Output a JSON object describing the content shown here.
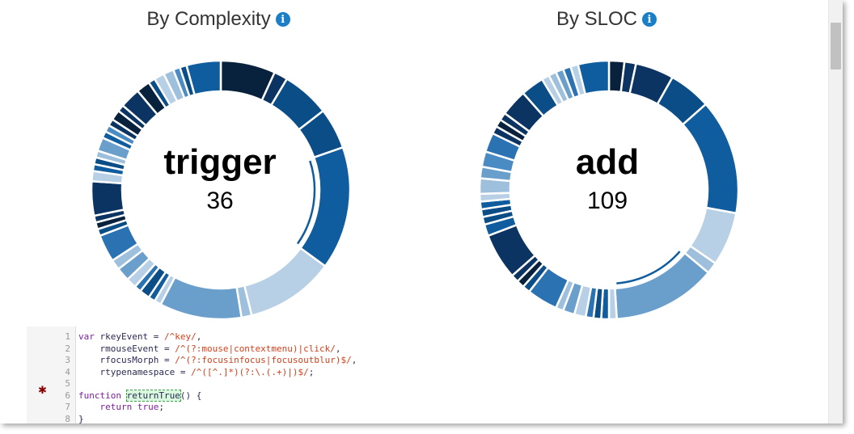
{
  "charts": {
    "complexity": {
      "title": "By Complexity",
      "center_name": "trigger",
      "center_value": "36"
    },
    "sloc": {
      "title": "By SLOC",
      "center_name": "add",
      "center_value": "109"
    },
    "info_icon_glyph": "i"
  },
  "colors": {
    "palette": [
      "#08213d",
      "#0c3462",
      "#0b4d86",
      "#0f5c9e",
      "#2b72b3",
      "#4a8bc4",
      "#6a9fcc",
      "#9ec0dd",
      "#b7d0e6"
    ],
    "highlight_outline": "#0f5c9e"
  },
  "chart_data": [
    {
      "type": "pie",
      "title": "By Complexity",
      "selected": {
        "label": "trigger",
        "value": 36
      },
      "slices": [
        {
          "value": 8,
          "c": 0
        },
        {
          "value": 2,
          "c": 1
        },
        {
          "value": 7,
          "c": 2
        },
        {
          "value": 6,
          "c": 2
        },
        {
          "value": 18,
          "c": 3,
          "selected": true
        },
        {
          "value": 13,
          "c": 8
        },
        {
          "value": 1.5,
          "c": 7
        },
        {
          "value": 12,
          "c": 6
        },
        {
          "value": 1,
          "c": 8
        },
        {
          "value": 1,
          "c": 3
        },
        {
          "value": 1.5,
          "c": 2
        },
        {
          "value": 1,
          "c": 4
        },
        {
          "value": 1.5,
          "c": 8
        },
        {
          "value": 2,
          "c": 6
        },
        {
          "value": 1.5,
          "c": 7
        },
        {
          "value": 4,
          "c": 4
        },
        {
          "value": 1,
          "c": 2
        },
        {
          "value": 1,
          "c": 0
        },
        {
          "value": 1,
          "c": 1
        },
        {
          "value": 5,
          "c": 1
        },
        {
          "value": 1.5,
          "c": 8
        },
        {
          "value": 1,
          "c": 3
        },
        {
          "value": 1,
          "c": 2
        },
        {
          "value": 1,
          "c": 7
        },
        {
          "value": 2,
          "c": 6
        },
        {
          "value": 1,
          "c": 3
        },
        {
          "value": 1,
          "c": 5
        },
        {
          "value": 1,
          "c": 1
        },
        {
          "value": 1.5,
          "c": 0
        },
        {
          "value": 1,
          "c": 1
        },
        {
          "value": 3,
          "c": 1
        },
        {
          "value": 2,
          "c": 0
        },
        {
          "value": 1,
          "c": 2
        },
        {
          "value": 1.5,
          "c": 8
        },
        {
          "value": 1.5,
          "c": 7
        },
        {
          "value": 1,
          "c": 5
        },
        {
          "value": 1,
          "c": 2
        },
        {
          "value": 5,
          "c": 3
        }
      ]
    },
    {
      "type": "pie",
      "title": "By SLOC",
      "selected": {
        "label": "add",
        "value": 109
      },
      "slices": [
        {
          "value": 2,
          "c": 0
        },
        {
          "value": 1.5,
          "c": 1
        },
        {
          "value": 5,
          "c": 1
        },
        {
          "value": 5.5,
          "c": 2
        },
        {
          "value": 15,
          "c": 3
        },
        {
          "value": 7,
          "c": 8
        },
        {
          "value": 1.5,
          "c": 7
        },
        {
          "value": 13.5,
          "c": 6,
          "selected": true
        },
        {
          "value": 1,
          "c": 8
        },
        {
          "value": 1,
          "c": 3
        },
        {
          "value": 1,
          "c": 2
        },
        {
          "value": 1,
          "c": 4
        },
        {
          "value": 1.5,
          "c": 8
        },
        {
          "value": 1.5,
          "c": 6
        },
        {
          "value": 1,
          "c": 7
        },
        {
          "value": 4,
          "c": 4
        },
        {
          "value": 1,
          "c": 2
        },
        {
          "value": 1,
          "c": 0
        },
        {
          "value": 1,
          "c": 1
        },
        {
          "value": 6,
          "c": 1
        },
        {
          "value": 1.5,
          "c": 3
        },
        {
          "value": 1,
          "c": 2
        },
        {
          "value": 1,
          "c": 2
        },
        {
          "value": 1,
          "c": 3
        },
        {
          "value": 1,
          "c": 8
        },
        {
          "value": 2,
          "c": 7
        },
        {
          "value": 1.5,
          "c": 6
        },
        {
          "value": 2,
          "c": 5
        },
        {
          "value": 2.5,
          "c": 4
        },
        {
          "value": 1,
          "c": 1
        },
        {
          "value": 1,
          "c": 0
        },
        {
          "value": 1,
          "c": 1
        },
        {
          "value": 3.5,
          "c": 1
        },
        {
          "value": 3,
          "c": 2
        },
        {
          "value": 1,
          "c": 8
        },
        {
          "value": 1,
          "c": 7
        },
        {
          "value": 1,
          "c": 6
        },
        {
          "value": 1,
          "c": 4
        },
        {
          "value": 1,
          "c": 8
        },
        {
          "value": 4,
          "c": 3
        }
      ]
    }
  ],
  "code": {
    "lines": [
      {
        "n": "1",
        "parts": [
          {
            "t": "var",
            "k": "kw"
          },
          {
            "t": " rkeyEvent = ",
            "k": "pl"
          },
          {
            "t": "/^key/",
            "k": "re"
          },
          {
            "t": ",",
            "k": "pl"
          }
        ]
      },
      {
        "n": "2",
        "parts": [
          {
            "t": "    rmouseEvent = ",
            "k": "pl"
          },
          {
            "t": "/^(?:mouse|contextmenu)|click/",
            "k": "re"
          },
          {
            "t": ",",
            "k": "pl"
          }
        ]
      },
      {
        "n": "3",
        "parts": [
          {
            "t": "    rfocusMorph = ",
            "k": "pl"
          },
          {
            "t": "/^(?:focusinfocus|focusoutblur)$/",
            "k": "re"
          },
          {
            "t": ",",
            "k": "pl"
          }
        ]
      },
      {
        "n": "4",
        "parts": [
          {
            "t": "    rtypenamespace = ",
            "k": "pl"
          },
          {
            "t": "/^([^.]*)(?:\\.(.+)|)$/",
            "k": "re"
          },
          {
            "t": ";",
            "k": "pl"
          }
        ]
      },
      {
        "n": "5",
        "parts": []
      },
      {
        "n": "6",
        "parts": [
          {
            "t": "function",
            "k": "kw"
          },
          {
            "t": " ",
            "k": "pl"
          },
          {
            "t": "returnTrue",
            "k": "pl hl"
          },
          {
            "t": "() {",
            "k": "pl"
          }
        ]
      },
      {
        "n": "7",
        "parts": [
          {
            "t": "    ",
            "k": "pl"
          },
          {
            "t": "return",
            "k": "kw"
          },
          {
            "t": " ",
            "k": "pl"
          },
          {
            "t": "true",
            "k": "kw"
          },
          {
            "t": ";",
            "k": "pl"
          }
        ]
      },
      {
        "n": "8",
        "parts": [
          {
            "t": "}",
            "k": "pl"
          }
        ]
      }
    ],
    "gear_glyph": "✱"
  }
}
